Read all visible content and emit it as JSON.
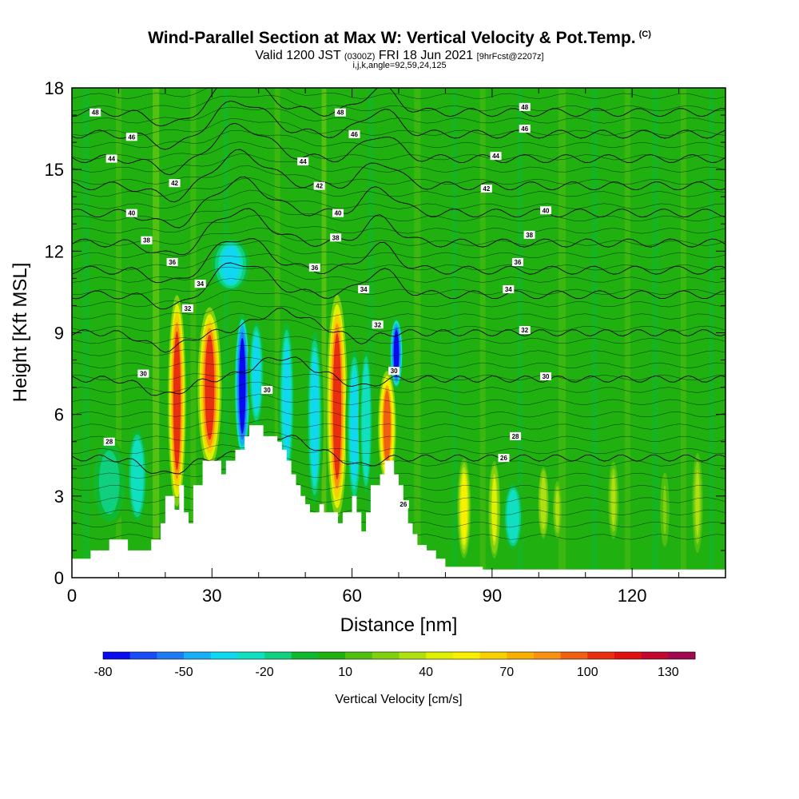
{
  "title": {
    "main": "Wind-Parallel Section at Max W: Vertical Velocity & Pot.Temp.",
    "copyright": "(C)",
    "valid_prefix": "Valid 1200 JST",
    "valid_utc": "(0300Z)",
    "valid_date": "FRI 18 Jun 2021",
    "forecast": "[9hrFcst@2207z]",
    "indices": "i,j,k,angle=92,59,24,125"
  },
  "chart_data": {
    "type": "heatmap",
    "xlabel": "Distance [nm]",
    "ylabel": "Height [Kft MSL]",
    "xlim": [
      0,
      140
    ],
    "ylim": [
      0,
      18
    ],
    "x_ticks": [
      0,
      30,
      60,
      90,
      120
    ],
    "y_ticks": [
      0,
      3,
      6,
      9,
      12,
      15,
      18
    ],
    "colorbar": {
      "label": "Vertical Velocity [cm/s]",
      "tick_labels": [
        "-80",
        "-50",
        "-20",
        "10",
        "40",
        "70",
        "100",
        "130"
      ],
      "tick_values": [
        -80,
        -50,
        -20,
        10,
        40,
        70,
        100,
        130
      ],
      "range": [
        -80,
        140
      ],
      "step": 10,
      "colors": [
        "#0a0af0",
        "#1a4cf5",
        "#1f7bf5",
        "#18aef5",
        "#10d8f0",
        "#10e0c0",
        "#10d080",
        "#10b830",
        "#20b010",
        "#50c010",
        "#80d010",
        "#b0e010",
        "#e0f000",
        "#f8f000",
        "#f8d000",
        "#f8b000",
        "#f89010",
        "#f06010",
        "#e83010",
        "#e01010",
        "#c00830",
        "#a00850"
      ]
    },
    "terrain_kft": [
      [
        0,
        0.7
      ],
      [
        4,
        0.7
      ],
      [
        4,
        1
      ],
      [
        8,
        1
      ],
      [
        8,
        1.4
      ],
      [
        12,
        1.4
      ],
      [
        12,
        1
      ],
      [
        17,
        1
      ],
      [
        17,
        1.4
      ],
      [
        19,
        1.4
      ],
      [
        19,
        2
      ],
      [
        20,
        2
      ],
      [
        20,
        3
      ],
      [
        22,
        3
      ],
      [
        22,
        2.5
      ],
      [
        23,
        2.5
      ],
      [
        23,
        3.4
      ],
      [
        24,
        3.4
      ],
      [
        24,
        2.4
      ],
      [
        25,
        2.4
      ],
      [
        25,
        2
      ],
      [
        26,
        2
      ],
      [
        26,
        3.4
      ],
      [
        28,
        3.4
      ],
      [
        28,
        4.3
      ],
      [
        32,
        4.3
      ],
      [
        32,
        3.8
      ],
      [
        33,
        3.8
      ],
      [
        33,
        4.3
      ],
      [
        35,
        4.3
      ],
      [
        35,
        4.7
      ],
      [
        37,
        4.7
      ],
      [
        37,
        5.2
      ],
      [
        38,
        5.2
      ],
      [
        38,
        5.6
      ],
      [
        41,
        5.6
      ],
      [
        41,
        5.2
      ],
      [
        44,
        5.2
      ],
      [
        44,
        5
      ],
      [
        45,
        5
      ],
      [
        45,
        4.7
      ],
      [
        46,
        4.7
      ],
      [
        46,
        4.3
      ],
      [
        47,
        4.3
      ],
      [
        47,
        3.8
      ],
      [
        48,
        3.8
      ],
      [
        48,
        3.4
      ],
      [
        49,
        3.4
      ],
      [
        49,
        3
      ],
      [
        50,
        3
      ],
      [
        50,
        2.7
      ],
      [
        51,
        2.7
      ],
      [
        51,
        2.4
      ],
      [
        53,
        2.4
      ],
      [
        53,
        2.7
      ],
      [
        54,
        2.7
      ],
      [
        54,
        2.4
      ],
      [
        57,
        2.4
      ],
      [
        57,
        2
      ],
      [
        58,
        2
      ],
      [
        58,
        2.4
      ],
      [
        60,
        2.4
      ],
      [
        60,
        3
      ],
      [
        61,
        3
      ],
      [
        61,
        2.4
      ],
      [
        62,
        2.4
      ],
      [
        62,
        1.7
      ],
      [
        63,
        1.7
      ],
      [
        63,
        2.4
      ],
      [
        64,
        2.4
      ],
      [
        64,
        3.4
      ],
      [
        66,
        3.4
      ],
      [
        66,
        3.8
      ],
      [
        67,
        3.8
      ],
      [
        67,
        4.3
      ],
      [
        69,
        4.3
      ],
      [
        69,
        3.8
      ],
      [
        70,
        3.8
      ],
      [
        70,
        3.4
      ],
      [
        71,
        3.4
      ],
      [
        71,
        2.7
      ],
      [
        72,
        2.7
      ],
      [
        72,
        2
      ],
      [
        73,
        2
      ],
      [
        73,
        1.6
      ],
      [
        74,
        1.6
      ],
      [
        74,
        1.2
      ],
      [
        76,
        1.2
      ],
      [
        76,
        1
      ],
      [
        78,
        1
      ],
      [
        78,
        0.7
      ],
      [
        80,
        0.7
      ],
      [
        80,
        0.4
      ],
      [
        88,
        0.4
      ],
      [
        88,
        0.3
      ],
      [
        140,
        0.3
      ]
    ],
    "w_columns": [
      {
        "x": 22.5,
        "y0": 2.8,
        "y1": 10.2,
        "w": 105,
        "width": 1.2
      },
      {
        "x": 29.5,
        "y0": 4.2,
        "y1": 9.8,
        "w": 100,
        "width": 1.6
      },
      {
        "x": 36.5,
        "y0": 4.5,
        "y1": 9.6,
        "w": -75,
        "width": 1.1
      },
      {
        "x": 39.5,
        "y0": 5.5,
        "y1": 9.5,
        "w": -40,
        "width": 1.2
      },
      {
        "x": 46,
        "y0": 3.5,
        "y1": 9.5,
        "w": -40,
        "width": 1.2
      },
      {
        "x": 52,
        "y0": 2.6,
        "y1": 9.2,
        "w": -35,
        "width": 1.2
      },
      {
        "x": 56.8,
        "y0": 2.4,
        "y1": 10.2,
        "w": 105,
        "width": 1.4
      },
      {
        "x": 60.5,
        "y0": 2.6,
        "y1": 8.5,
        "w": -40,
        "width": 1.2
      },
      {
        "x": 63,
        "y0": 3,
        "y1": 8.5,
        "w": -30,
        "width": 1
      },
      {
        "x": 67.5,
        "y0": 3.6,
        "y1": 7.5,
        "w": 90,
        "width": 1.2
      },
      {
        "x": 69.5,
        "y0": 7,
        "y1": 9.5,
        "w": -75,
        "width": 0.9
      },
      {
        "x": 84,
        "y0": 0.8,
        "y1": 4.3,
        "w": 55,
        "width": 0.9
      },
      {
        "x": 90.5,
        "y0": 0.8,
        "y1": 4.2,
        "w": 40,
        "width": 0.8
      },
      {
        "x": 94.5,
        "y0": 1,
        "y1": 3.5,
        "w": -30,
        "width": 1.5
      },
      {
        "x": 101,
        "y0": 1.5,
        "y1": 4,
        "w": 35,
        "width": 0.7
      },
      {
        "x": 104,
        "y0": 1.5,
        "y1": 3.5,
        "w": 30,
        "width": 0.6
      },
      {
        "x": 116,
        "y0": 1.5,
        "y1": 4.2,
        "w": 30,
        "width": 0.7
      },
      {
        "x": 127,
        "y0": 1.2,
        "y1": 3.8,
        "w": 20,
        "width": 0.6
      },
      {
        "x": 134,
        "y0": 1,
        "y1": 4.5,
        "w": 30,
        "width": 0.7
      },
      {
        "x": 8,
        "y0": 2,
        "y1": 5,
        "w": -20,
        "width": 2.5
      },
      {
        "x": 14,
        "y0": 2,
        "y1": 5.5,
        "w": -30,
        "width": 1.5
      },
      {
        "x": 34,
        "y0": 10.5,
        "y1": 12.5,
        "w": -40,
        "width": 3
      }
    ],
    "theta_contours": [
      {
        "label": "28",
        "base": 4.4
      },
      {
        "label": "30",
        "base": 7.3
      },
      {
        "label": "32",
        "base": 9.0
      },
      {
        "label": "34",
        "base": 10.4
      },
      {
        "label": "36",
        "base": 11.3
      },
      {
        "label": "38",
        "base": 12.3
      },
      {
        "label": "40",
        "base": 13.4
      },
      {
        "label": "42",
        "base": 14.4
      },
      {
        "label": "44",
        "base": 15.4
      },
      {
        "label": "46",
        "base": 16.3
      },
      {
        "label": "48",
        "base": 17.1
      }
    ],
    "contour_labels": [
      {
        "text": "48",
        "x": 5,
        "y": 17.1
      },
      {
        "text": "46",
        "x": 12.8,
        "y": 16.2
      },
      {
        "text": "44",
        "x": 8.5,
        "y": 15.4
      },
      {
        "text": "42",
        "x": 22,
        "y": 14.5
      },
      {
        "text": "40",
        "x": 12.8,
        "y": 13.4
      },
      {
        "text": "38",
        "x": 16,
        "y": 12.4
      },
      {
        "text": "36",
        "x": 21.5,
        "y": 11.6
      },
      {
        "text": "34",
        "x": 27.5,
        "y": 10.8
      },
      {
        "text": "32",
        "x": 24.8,
        "y": 9.9
      },
      {
        "text": "30",
        "x": 15.3,
        "y": 7.5
      },
      {
        "text": "28",
        "x": 8,
        "y": 5
      },
      {
        "text": "30",
        "x": 41.8,
        "y": 6.9
      },
      {
        "text": "48",
        "x": 57.5,
        "y": 17.1
      },
      {
        "text": "46",
        "x": 60.5,
        "y": 16.3
      },
      {
        "text": "44",
        "x": 49.5,
        "y": 15.3
      },
      {
        "text": "42",
        "x": 53,
        "y": 14.4
      },
      {
        "text": "40",
        "x": 57,
        "y": 13.4
      },
      {
        "text": "38",
        "x": 56.5,
        "y": 12.5
      },
      {
        "text": "36",
        "x": 52,
        "y": 11.4
      },
      {
        "text": "34",
        "x": 62.5,
        "y": 10.6
      },
      {
        "text": "32",
        "x": 65.5,
        "y": 9.3
      },
      {
        "text": "30",
        "x": 69,
        "y": 7.6
      },
      {
        "text": "26",
        "x": 71,
        "y": 2.7
      },
      {
        "text": "48",
        "x": 97,
        "y": 17.3
      },
      {
        "text": "46",
        "x": 97,
        "y": 16.5
      },
      {
        "text": "44",
        "x": 90.8,
        "y": 15.5
      },
      {
        "text": "42",
        "x": 88.8,
        "y": 14.3
      },
      {
        "text": "40",
        "x": 101.5,
        "y": 13.5
      },
      {
        "text": "38",
        "x": 98,
        "y": 12.6
      },
      {
        "text": "36",
        "x": 95.5,
        "y": 11.6
      },
      {
        "text": "34",
        "x": 93.5,
        "y": 10.6
      },
      {
        "text": "32",
        "x": 97,
        "y": 9.1
      },
      {
        "text": "30",
        "x": 101.5,
        "y": 7.4
      },
      {
        "text": "28",
        "x": 95,
        "y": 5.2
      },
      {
        "text": "26",
        "x": 92.5,
        "y": 4.4
      }
    ]
  }
}
